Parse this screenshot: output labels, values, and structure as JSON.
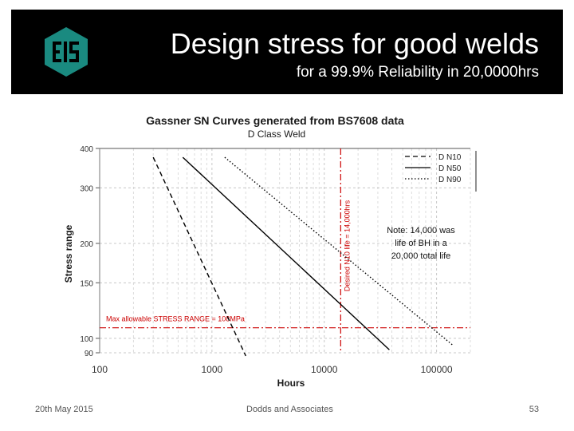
{
  "slide": {
    "title": "Design stress for good welds",
    "subtitle": "for a 99.9% Reliability in 20,0000hrs",
    "logo_icon": "eis-logo-icon",
    "footer_date": "20th May 2015",
    "footer_org": "Dodds and Associates",
    "footer_page": "53"
  },
  "colors": {
    "banner": "#000000",
    "logo": "#1a8a80",
    "reference": "#cc0000",
    "curves": "#000000"
  },
  "chart_data": {
    "type": "line",
    "title": "Gassner SN Curves generated from BS7608 data",
    "subtitle": "D Class Weld",
    "xlabel": "Hours",
    "ylabel": "Stress range",
    "x_scale": "log",
    "y_scale": "log",
    "xlim": [
      100,
      200000
    ],
    "ylim": [
      90,
      400
    ],
    "x_ticks": [
      100,
      1000,
      10000,
      100000
    ],
    "x_tick_labels": [
      "100",
      "1000",
      "10000",
      "100000"
    ],
    "y_ticks": [
      400,
      300,
      200,
      150,
      100,
      90
    ],
    "y_tick_labels": [
      "400",
      "300",
      "200",
      "150",
      "100",
      "90"
    ],
    "grid": true,
    "legend_position": "top-right",
    "series": [
      {
        "name": "D  N10",
        "style": "dashed",
        "points": [
          [
            300,
            375
          ],
          [
            2000,
            88
          ]
        ]
      },
      {
        "name": "D  N50",
        "style": "solid",
        "points": [
          [
            550,
            375
          ],
          [
            38000,
            92
          ]
        ]
      },
      {
        "name": "D  N90",
        "style": "dotted",
        "points": [
          [
            1300,
            375
          ],
          [
            140000,
            95
          ]
        ]
      }
    ],
    "reference_lines": [
      {
        "axis": "y",
        "value": 108,
        "label": "Max allowable STRESS RANGE = 108MPa"
      },
      {
        "axis": "x",
        "value": 14000,
        "label": "Desired N10 life = 14,000hrs"
      }
    ],
    "annotations": [
      {
        "lines": [
          "Note: 14,000 was",
          "life of BH in a",
          "20,000 total life"
        ]
      }
    ]
  }
}
